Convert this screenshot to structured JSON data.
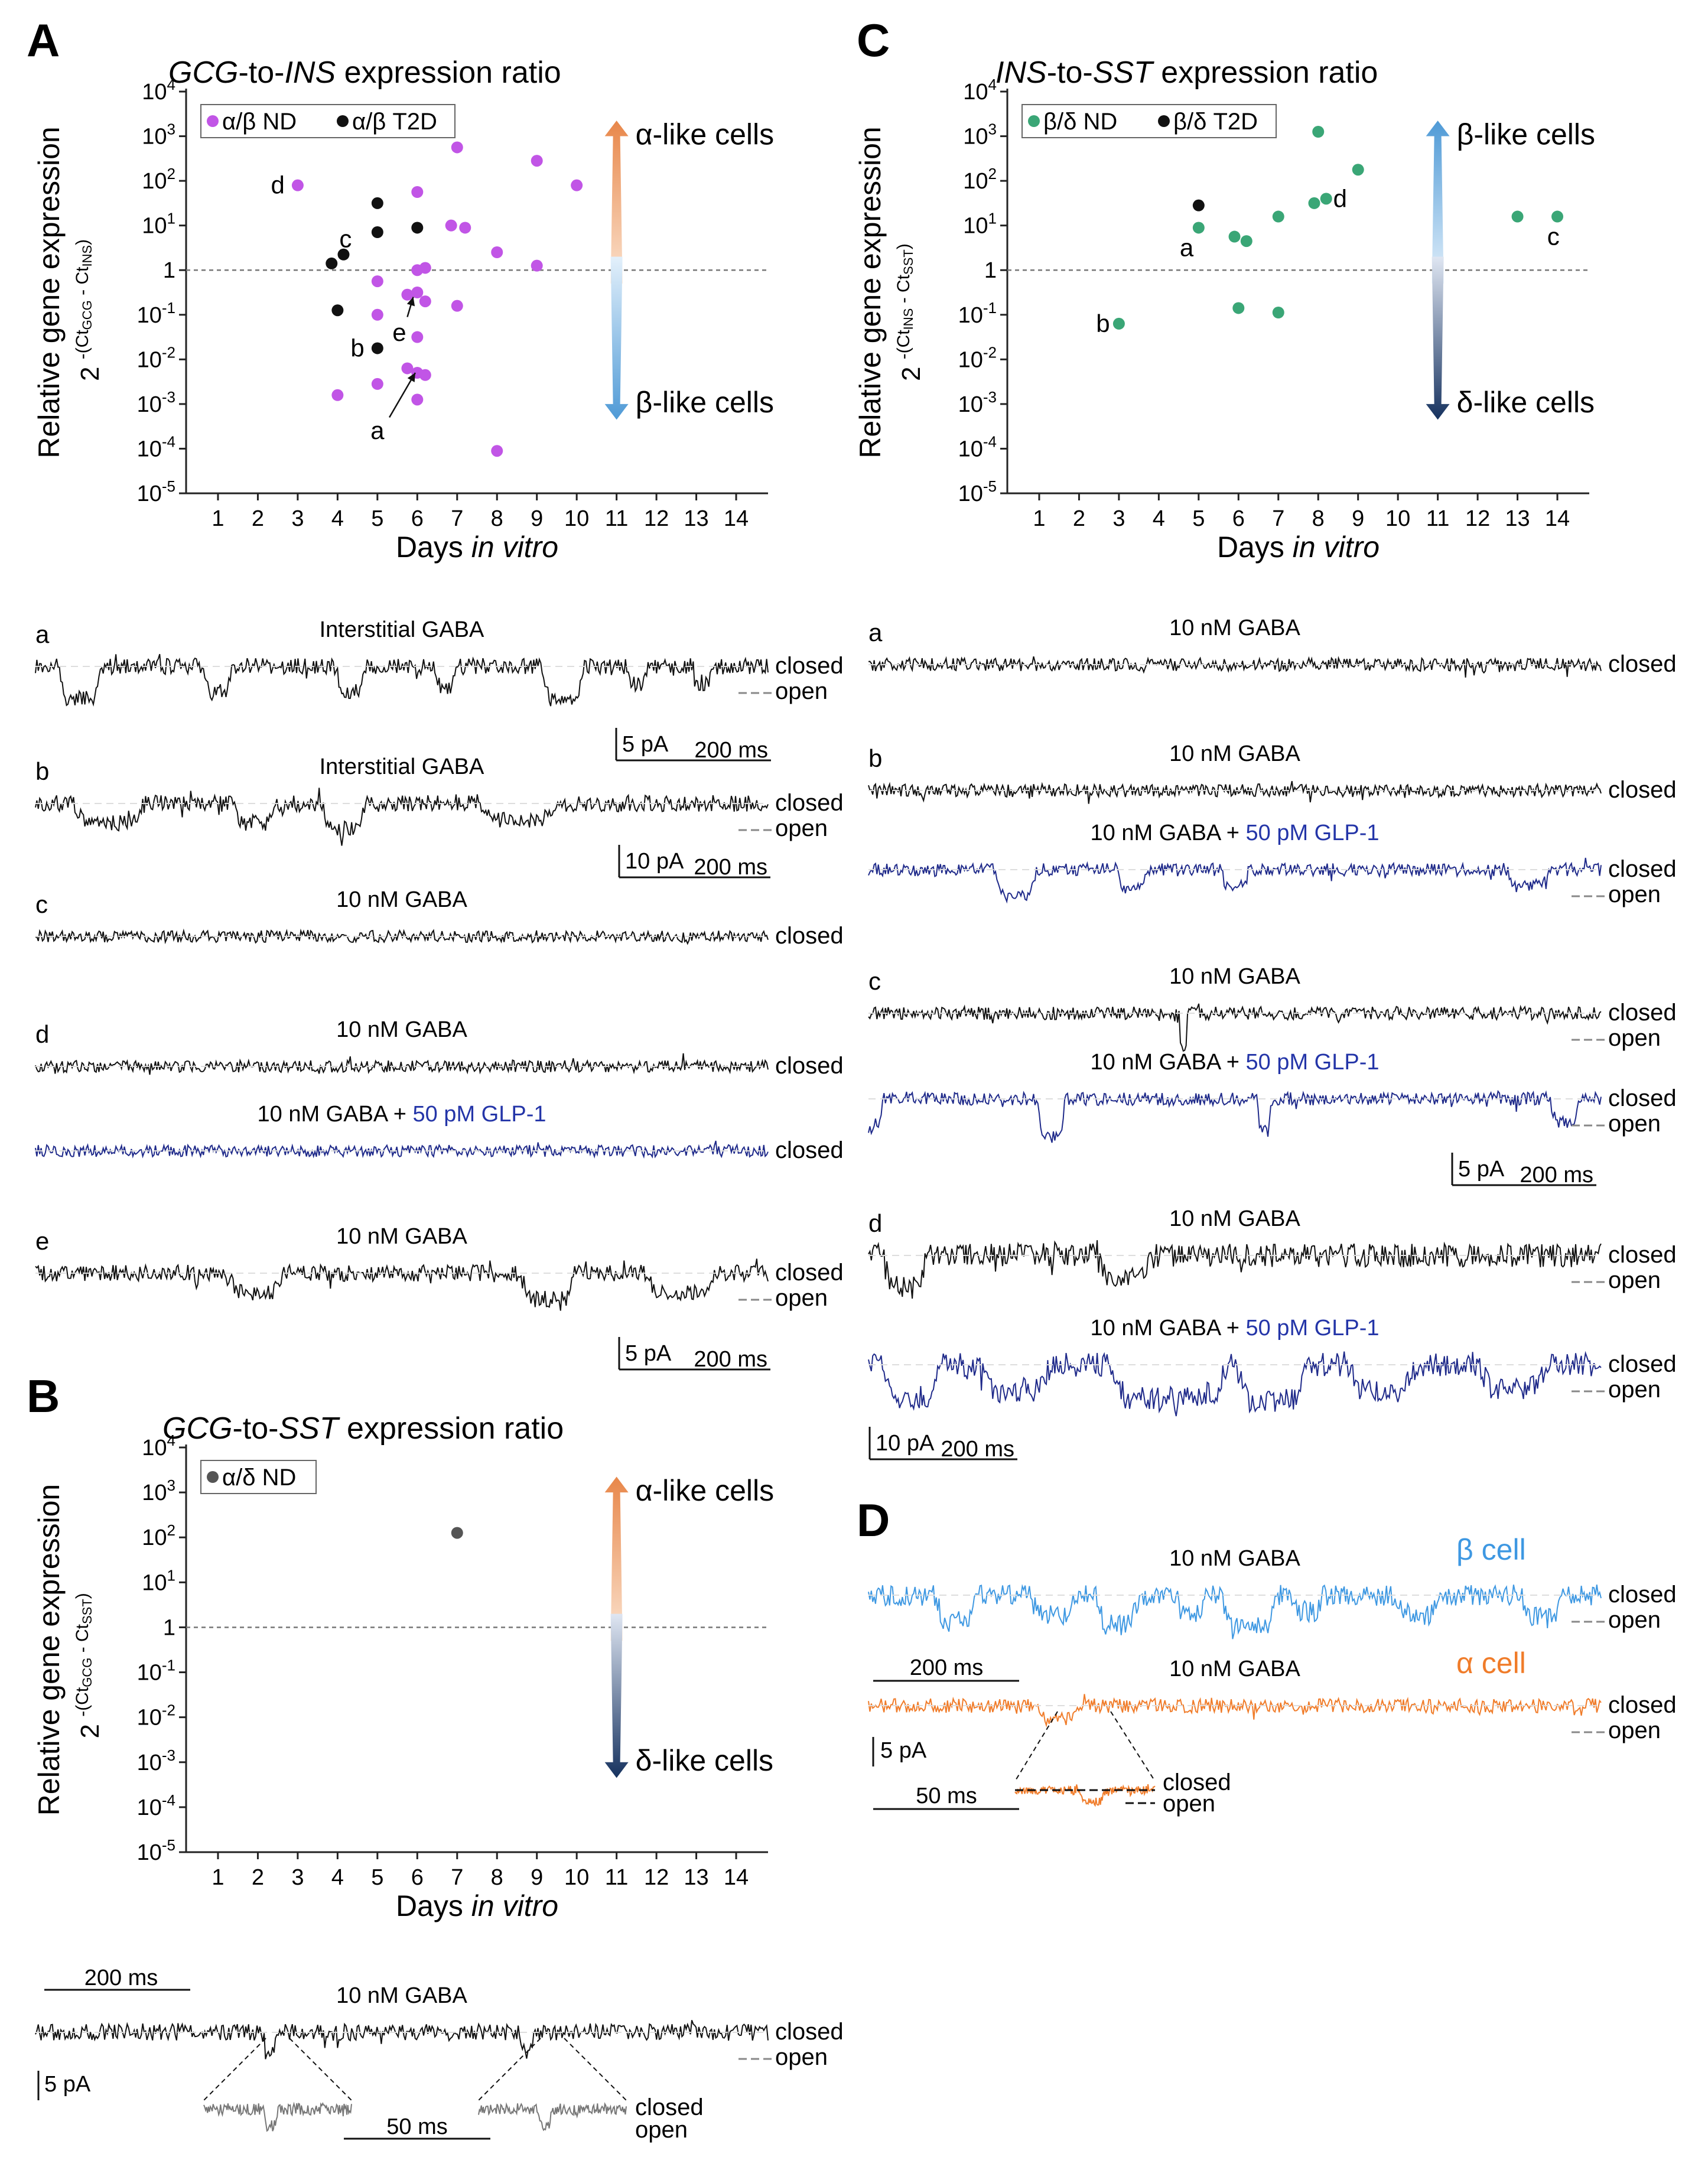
{
  "chart_data": [
    {
      "panel": "A",
      "type": "scatter",
      "title_italic_1": "GCG",
      "title_plain_1": "-to-",
      "title_italic_2": "INS",
      "title_plain_2": " expression ratio",
      "ylabel": "Relative gene expression",
      "yexpr": "2 -(CtGCG - CtINS)",
      "ybase": "2",
      "yexp_pre": "-(Ct",
      "yexp_sub1": "GCG",
      "yexp_mid": " - Ct",
      "yexp_sub2": "INS",
      "yexp_post": ")",
      "xlabel_plain": "Days ",
      "xlabel_italic": "in vitro",
      "xticks": [
        1,
        2,
        3,
        4,
        5,
        6,
        7,
        8,
        9,
        10,
        11,
        12,
        13,
        14
      ],
      "yticks": [
        "10-5",
        "10-4",
        "10-3",
        "10-2",
        "10-1",
        "1",
        "101",
        "102",
        "103",
        "104"
      ],
      "ylim_log10": [
        -5,
        4
      ],
      "xlim": [
        0.2,
        14.8
      ],
      "legend": [
        "α/β ND",
        "α/β T2D"
      ],
      "arrow_up_label": "α-like cells",
      "arrow_down_label": "β-like cells",
      "arrow_up_color": "#e8874a",
      "arrow_down_color": "#4f9ad6",
      "series": [
        {
          "name": "α/β ND",
          "color": "#c155e6",
          "points": [
            [
              3,
              1.9
            ],
            [
              4,
              -2.8
            ],
            [
              5,
              -0.25
            ],
            [
              5,
              -1.0
            ],
            [
              5,
              -2.55
            ],
            [
              5.75,
              -0.55
            ],
            [
              5.75,
              -2.2
            ],
            [
              6,
              1.75
            ],
            [
              6,
              0.0
            ],
            [
              6,
              -0.5
            ],
            [
              6,
              -1.5
            ],
            [
              6,
              -2.3
            ],
            [
              6,
              -2.9
            ],
            [
              6.2,
              0.05
            ],
            [
              6.2,
              -0.7
            ],
            [
              6.2,
              -2.35
            ],
            [
              6.85,
              1.0
            ],
            [
              7,
              2.75
            ],
            [
              7,
              -0.8
            ],
            [
              7.2,
              0.95
            ],
            [
              8,
              0.4
            ],
            [
              8,
              -4.05
            ],
            [
              9,
              2.45
            ],
            [
              9,
              0.1
            ],
            [
              10,
              1.9
            ]
          ]
        },
        {
          "name": "α/β T2D",
          "color": "#111111",
          "points": [
            [
              3.85,
              0.15
            ],
            [
              4,
              -0.9
            ],
            [
              4.15,
              0.35
            ],
            [
              5,
              1.5
            ],
            [
              5,
              0.85
            ],
            [
              5,
              -1.75
            ],
            [
              6,
              0.95
            ]
          ]
        }
      ],
      "point_labels": [
        {
          "text": "d",
          "x": 2.5,
          "y": 1.9
        },
        {
          "text": "c",
          "x": 4.2,
          "y": 0.7
        },
        {
          "text": "b",
          "x": 4.5,
          "y": -1.75
        },
        {
          "text": "a",
          "x": 5.0,
          "y": -3.6
        },
        {
          "text": "e",
          "x": 5.55,
          "y": -1.4
        }
      ],
      "annotation_arrows": [
        {
          "from": [
            5.3,
            -3.3
          ],
          "to": [
            5.95,
            -2.3
          ]
        },
        {
          "from": [
            5.75,
            -1.05
          ],
          "to": [
            5.9,
            -0.6
          ]
        }
      ]
    },
    {
      "panel": "C",
      "type": "scatter",
      "title_italic_1": "INS",
      "title_plain_1": "-to-",
      "title_italic_2": "SST",
      "title_plain_2": " expression ratio",
      "ylabel": "Relative gene expression",
      "yexpr": "2 -(CtINS - CtSST)",
      "ybase": "2",
      "yexp_pre": "-(Ct",
      "yexp_sub1": "INS",
      "yexp_mid": " - Ct",
      "yexp_sub2": "SST",
      "yexp_post": ")",
      "xlabel_plain": "Days ",
      "xlabel_italic": "in vitro",
      "xticks": [
        1,
        2,
        3,
        4,
        5,
        6,
        7,
        8,
        9,
        10,
        11,
        12,
        13,
        14
      ],
      "yticks": [
        "10-5",
        "10-4",
        "10-3",
        "10-2",
        "10-1",
        "1",
        "101",
        "102",
        "103",
        "104"
      ],
      "ylim_log10": [
        -5,
        4
      ],
      "xlim": [
        0.2,
        14.8
      ],
      "legend": [
        "β/δ ND",
        "β/δ T2D"
      ],
      "arrow_up_label": "β-like cells",
      "arrow_down_label": "δ-like cells",
      "arrow_up_color": "#4f9ad6",
      "arrow_down_color": "#16325f",
      "series": [
        {
          "name": "β/δ ND",
          "color": "#3aa676",
          "points": [
            [
              3,
              -1.2
            ],
            [
              5,
              0.95
            ],
            [
              5.9,
              0.75
            ],
            [
              6,
              -0.85
            ],
            [
              6.2,
              0.65
            ],
            [
              7,
              1.2
            ],
            [
              7,
              -0.95
            ],
            [
              7.9,
              1.5
            ],
            [
              8,
              3.1
            ],
            [
              8.2,
              1.6
            ],
            [
              9,
              2.25
            ],
            [
              13,
              1.2
            ],
            [
              14,
              1.2
            ]
          ]
        },
        {
          "name": "β/δ T2D",
          "color": "#111111",
          "points": [
            [
              5,
              1.45
            ]
          ]
        }
      ],
      "point_labels": [
        {
          "text": "b",
          "x": 2.6,
          "y": -1.2
        },
        {
          "text": "a",
          "x": 4.7,
          "y": 0.5
        },
        {
          "text": "d",
          "x": 8.55,
          "y": 1.6
        },
        {
          "text": "c",
          "x": 13.9,
          "y": 0.75
        }
      ],
      "annotation_arrows": []
    },
    {
      "panel": "B",
      "type": "scatter",
      "title_italic_1": "GCG",
      "title_plain_1": "-to-",
      "title_italic_2": "SST",
      "title_plain_2": " expression ratio",
      "ylabel": "Relative gene expression",
      "yexpr": "2 -(CtGCG - CtSST)",
      "ybase": "2",
      "yexp_pre": "-(Ct",
      "yexp_sub1": "GCG",
      "yexp_mid": " - Ct",
      "yexp_sub2": "SST",
      "yexp_post": ")",
      "xlabel_plain": "Days ",
      "xlabel_italic": "in vitro",
      "xticks": [
        1,
        2,
        3,
        4,
        5,
        6,
        7,
        8,
        9,
        10,
        11,
        12,
        13,
        14
      ],
      "yticks": [
        "10-5",
        "10-4",
        "10-3",
        "10-2",
        "10-1",
        "1",
        "101",
        "102",
        "103",
        "104"
      ],
      "ylim_log10": [
        -5,
        4
      ],
      "xlim": [
        0.2,
        14.8
      ],
      "legend": [
        "α/δ ND"
      ],
      "arrow_up_label": "α-like cells",
      "arrow_down_label": "δ-like cells",
      "arrow_up_color": "#e8874a",
      "arrow_down_color": "#16325f",
      "series": [
        {
          "name": "α/δ ND",
          "color": "#555555",
          "points": [
            [
              7,
              2.1
            ]
          ]
        }
      ],
      "point_labels": [],
      "annotation_arrows": []
    }
  ],
  "panel_labels": {
    "A": "A",
    "B": "B",
    "C": "C",
    "D": "D"
  },
  "traces": {
    "A": [
      {
        "letter": "a",
        "caption": "Interstitial GABA",
        "color": "#111111",
        "states": [
          "closed",
          "open"
        ],
        "seed": 11,
        "events": [
          [
            0.06,
            0.03,
            1.0
          ],
          [
            0.25,
            0.02,
            0.8
          ],
          [
            0.43,
            0.02,
            0.9
          ],
          [
            0.56,
            0.015,
            0.6
          ],
          [
            0.72,
            0.03,
            1.0
          ],
          [
            0.82,
            0.015,
            0.5
          ],
          [
            0.91,
            0.015,
            0.5
          ]
        ]
      },
      {
        "letter": "b",
        "caption": "Interstitial GABA",
        "color": "#111111",
        "states": [
          "closed",
          "open"
        ],
        "seed": 12,
        "events": [
          [
            0.1,
            0.05,
            0.6
          ],
          [
            0.3,
            0.03,
            0.6
          ],
          [
            0.42,
            0.03,
            0.8
          ],
          [
            0.66,
            0.05,
            0.5
          ]
        ]
      },
      {
        "letter": "c",
        "caption": "10 nM GABA",
        "color": "#111111",
        "states": [
          "closed"
        ],
        "seed": 13,
        "events": []
      },
      {
        "letter": "d",
        "caption": "10 nM GABA",
        "color": "#111111",
        "states": [
          "closed"
        ],
        "seed": 14,
        "events": []
      },
      {
        "letter": "",
        "caption": "10 nM GABA + ",
        "caption_glp": "50 pM GLP-1",
        "color": "#1f2a8a",
        "states": [
          "closed"
        ],
        "seed": 15,
        "events": []
      },
      {
        "letter": "e",
        "caption": "10 nM GABA",
        "color": "#111111",
        "states": [
          "closed",
          "open"
        ],
        "seed": 16,
        "events": [
          [
            0.3,
            0.04,
            0.6
          ],
          [
            0.7,
            0.04,
            0.8
          ],
          [
            0.88,
            0.05,
            0.6
          ]
        ]
      }
    ],
    "A_scalebars": [
      {
        "amplitude": "5 pA",
        "time": "200 ms"
      },
      {
        "amplitude": "10 pA",
        "time": "200 ms"
      },
      {
        "amplitude": "5 pA",
        "time": "200 ms"
      }
    ],
    "B": {
      "caption": "10 nM GABA",
      "states": [
        "closed",
        "open"
      ],
      "time_bar": "200 ms",
      "amp_bar": "5 pA",
      "zoom_time_bar": "50 ms",
      "zoom_states": [
        "closed",
        "open"
      ]
    },
    "C": [
      {
        "letter": "a",
        "caption": "10 nM GABA",
        "color": "#111111",
        "states": [
          "closed"
        ],
        "seed": 21,
        "events": []
      },
      {
        "letter": "b",
        "caption": "10 nM GABA",
        "color": "#111111",
        "states": [
          "closed"
        ],
        "seed": 22,
        "events": []
      },
      {
        "letter": "",
        "caption": "10 nM GABA + ",
        "caption_glp": "50 pM GLP-1",
        "color": "#1f2a8a",
        "states": [
          "closed",
          "open"
        ],
        "seed": 23,
        "events": [
          [
            0.2,
            0.03,
            0.8
          ],
          [
            0.36,
            0.02,
            0.6
          ],
          [
            0.5,
            0.02,
            0.5
          ],
          [
            0.9,
            0.03,
            0.5
          ]
        ]
      },
      {
        "letter": "c",
        "caption": "10 nM GABA",
        "color": "#111111",
        "states": [
          "closed",
          "open"
        ],
        "seed": 24,
        "events": [
          [
            0.43,
            0.006,
            1.0
          ]
        ]
      },
      {
        "letter": "",
        "caption": "10 nM GABA + ",
        "caption_glp": "50 pM GLP-1",
        "color": "#1f2a8a",
        "states": [
          "closed",
          "open"
        ],
        "seed": 25,
        "events": [
          [
            0.0,
            0.02,
            1.0
          ],
          [
            0.25,
            0.02,
            1.2
          ],
          [
            0.54,
            0.01,
            1.0
          ],
          [
            0.95,
            0.02,
            0.7
          ]
        ]
      },
      {
        "letter": "d",
        "caption": "10 nM GABA",
        "color": "#111111",
        "states": [
          "closed",
          "open"
        ],
        "seed": 26,
        "events": [
          [
            0.05,
            0.03,
            1.0
          ],
          [
            0.35,
            0.04,
            0.7
          ]
        ]
      },
      {
        "letter": "",
        "caption": "10 nM GABA + ",
        "caption_glp": "50 pM GLP-1",
        "color": "#1f2a8a",
        "states": [
          "closed",
          "open"
        ],
        "seed": 27,
        "events": [
          [
            0.06,
            0.04,
            1.0
          ],
          [
            0.2,
            0.05,
            0.8
          ],
          [
            0.38,
            0.05,
            1.0
          ],
          [
            0.45,
            0.04,
            0.9
          ],
          [
            0.55,
            0.05,
            1.1
          ],
          [
            0.7,
            0.05,
            0.8
          ],
          [
            0.88,
            0.05,
            0.7
          ]
        ]
      }
    ],
    "C_scalebars": [
      {
        "amplitude": "5 pA",
        "time": "200 ms"
      },
      {
        "amplitude": "10 pA",
        "time": "200 ms"
      }
    ],
    "D": {
      "caption": "10 nM GABA",
      "beta_label": "β cell",
      "alpha_label": "α cell",
      "beta_color": "#3e98e2",
      "alpha_color": "#f07c2a",
      "states": [
        "closed",
        "open"
      ],
      "time_bar": "200 ms",
      "amp_bar": "5 pA",
      "zoom_time_bar": "50 ms",
      "zoom_states": [
        "closed",
        "open"
      ]
    }
  }
}
